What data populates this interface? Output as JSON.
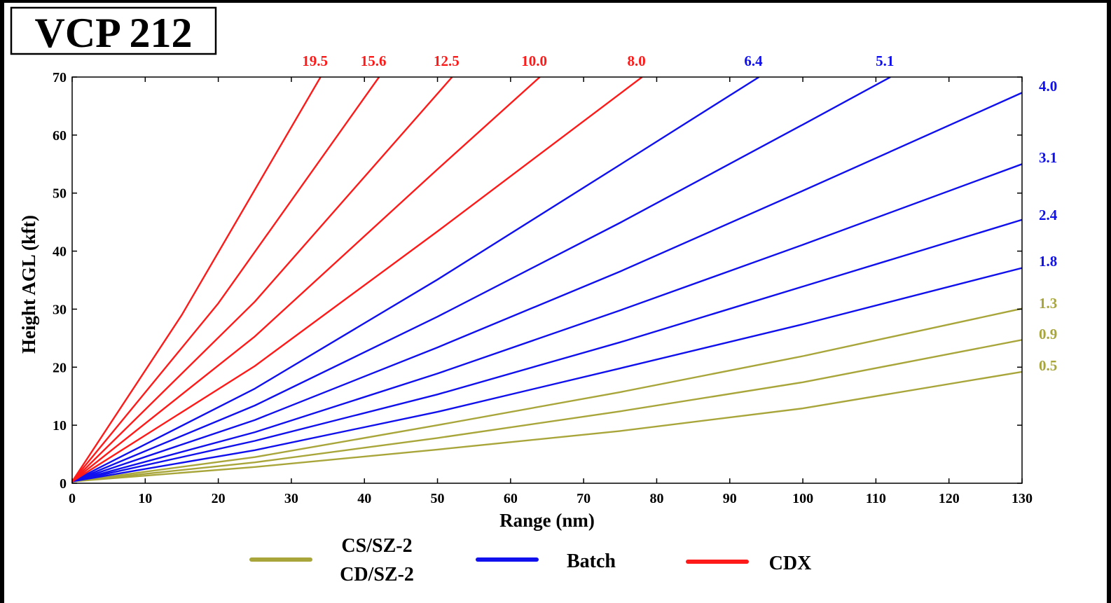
{
  "chart_data": {
    "type": "line",
    "title": "VCP 212",
    "xlabel": "Range (nm)",
    "ylabel": "Height AGL (kft)",
    "xlim": [
      0,
      130
    ],
    "ylim": [
      0,
      70
    ],
    "x_ticks": [
      0,
      10,
      20,
      30,
      40,
      50,
      60,
      70,
      80,
      90,
      100,
      110,
      120,
      130
    ],
    "y_ticks": [
      0,
      10,
      20,
      30,
      40,
      50,
      60,
      70
    ],
    "grid": false,
    "legend_position": "bottom",
    "series": [
      {
        "name": "CS/SZ-2 CD/SZ-2",
        "label": "0.5",
        "color": "#a8a63a",
        "x": [
          0,
          25,
          50,
          75,
          100,
          130
        ],
        "y": [
          0.3,
          2.8,
          5.8,
          9.0,
          12.9,
          19.2
        ]
      },
      {
        "name": "CS/SZ-2 CD/SZ-2",
        "label": "0.9",
        "color": "#a8a63a",
        "x": [
          0,
          25,
          50,
          75,
          100,
          130
        ],
        "y": [
          0.3,
          3.6,
          7.8,
          12.4,
          17.4,
          24.7
        ]
      },
      {
        "name": "CS/SZ-2 CD/SZ-2",
        "label": "1.3",
        "color": "#a8a63a",
        "x": [
          0,
          25,
          50,
          75,
          100,
          130
        ],
        "y": [
          0.3,
          4.5,
          10.0,
          15.7,
          21.9,
          30.1
        ]
      },
      {
        "name": "Batch",
        "label": "1.8",
        "color": "#1010ee",
        "x": [
          0,
          25,
          50,
          75,
          100,
          130
        ],
        "y": [
          0.3,
          5.7,
          12.3,
          19.8,
          27.4,
          37.1
        ]
      },
      {
        "name": "Batch",
        "label": "2.4",
        "color": "#1010ee",
        "x": [
          0,
          25,
          50,
          75,
          100,
          130
        ],
        "y": [
          0.3,
          7.3,
          15.3,
          24.3,
          33.9,
          45.4
        ]
      },
      {
        "name": "Batch",
        "label": "3.1",
        "color": "#1010ee",
        "x": [
          0,
          25,
          50,
          75,
          100,
          130
        ],
        "y": [
          0.3,
          8.8,
          18.9,
          29.8,
          41.1,
          55.0
        ]
      },
      {
        "name": "Batch",
        "label": "4.0",
        "color": "#1010ee",
        "x": [
          0,
          25,
          50,
          75,
          100,
          130
        ],
        "y": [
          0.3,
          10.9,
          23.4,
          36.5,
          50.4,
          67.3
        ]
      },
      {
        "name": "Batch",
        "label": "5.1",
        "color": "#1010ee",
        "x": [
          0,
          25,
          50,
          75,
          100,
          112
        ],
        "y": [
          0.3,
          13.4,
          28.7,
          44.9,
          61.8,
          70.0
        ]
      },
      {
        "name": "Batch",
        "label": "6.4",
        "color": "#1010ee",
        "x": [
          0,
          25,
          50,
          75,
          94
        ],
        "y": [
          0.3,
          16.3,
          35.1,
          54.9,
          70.0
        ]
      },
      {
        "name": "CDX",
        "label": "8.0",
        "color": "#ff1a1a",
        "x": [
          0,
          25,
          50,
          78
        ],
        "y": [
          0.3,
          20.2,
          43.4,
          70.0
        ]
      },
      {
        "name": "CDX",
        "label": "10.0",
        "color": "#ff1a1a",
        "x": [
          0,
          25,
          50,
          64
        ],
        "y": [
          0.3,
          25.3,
          54.1,
          70.0
        ]
      },
      {
        "name": "CDX",
        "label": "12.5",
        "color": "#ff1a1a",
        "x": [
          0,
          25,
          52
        ],
        "y": [
          0.3,
          31.3,
          70.0
        ]
      },
      {
        "name": "CDX",
        "label": "15.6",
        "color": "#ff1a1a",
        "x": [
          0,
          20,
          42
        ],
        "y": [
          0.3,
          31.0,
          70.0
        ]
      },
      {
        "name": "CDX",
        "label": "19.5",
        "color": "#ff1a1a",
        "x": [
          0,
          15,
          34
        ],
        "y": [
          0.3,
          29.0,
          70.0
        ]
      }
    ],
    "legend": [
      {
        "lines": [
          "CS/SZ-2",
          "CD/SZ-2"
        ],
        "color": "#a8a63a"
      },
      {
        "lines": [
          "Batch"
        ],
        "color": "#1010ee"
      },
      {
        "lines": [
          "CDX"
        ],
        "color": "#ff1a1a"
      }
    ]
  }
}
